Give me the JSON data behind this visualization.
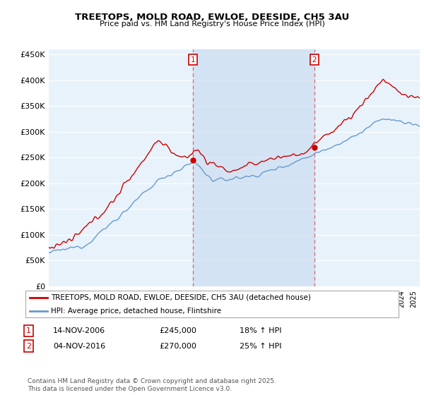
{
  "title": "TREETOPS, MOLD ROAD, EWLOE, DEESIDE, CH5 3AU",
  "subtitle": "Price paid vs. HM Land Registry's House Price Index (HPI)",
  "ylabel_ticks": [
    "£0",
    "£50K",
    "£100K",
    "£150K",
    "£200K",
    "£250K",
    "£300K",
    "£350K",
    "£400K",
    "£450K"
  ],
  "ytick_values": [
    0,
    50000,
    100000,
    150000,
    200000,
    250000,
    300000,
    350000,
    400000,
    450000
  ],
  "ylim": [
    0,
    460000
  ],
  "xlim_start": 1995.0,
  "xlim_end": 2025.5,
  "red_line_color": "#cc0000",
  "blue_line_color": "#6699cc",
  "dashed_line_color": "#dd6666",
  "shade_color": "#ccddf0",
  "sale1_x": 2006.87,
  "sale1_y": 245000,
  "sale2_x": 2016.84,
  "sale2_y": 270000,
  "legend_red_label": "TREETOPS, MOLD ROAD, EWLOE, DEESIDE, CH5 3AU (detached house)",
  "legend_blue_label": "HPI: Average price, detached house, Flintshire",
  "table_row1_num": "1",
  "table_row1_date": "14-NOV-2006",
  "table_row1_price": "£245,000",
  "table_row1_hpi": "18% ↑ HPI",
  "table_row2_num": "2",
  "table_row2_date": "04-NOV-2016",
  "table_row2_price": "£270,000",
  "table_row2_hpi": "25% ↑ HPI",
  "footnote": "Contains HM Land Registry data © Crown copyright and database right 2025.\nThis data is licensed under the Open Government Licence v3.0.",
  "fig_bg_color": "#ffffff",
  "plot_bg_color": "#e8f2fb"
}
